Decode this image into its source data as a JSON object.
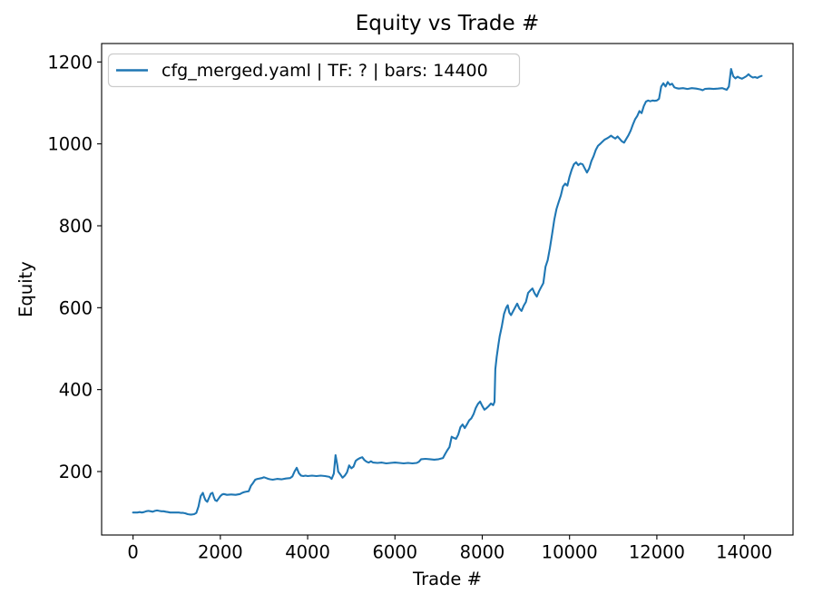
{
  "chart_data": {
    "type": "line",
    "title": "Equity vs Trade #",
    "xlabel": "Trade #",
    "ylabel": "Equity",
    "legend_position": "upper left",
    "line_color": "#1f77b4",
    "legend_edge_color": "#cccccc",
    "xlim": [
      -720,
      15120
    ],
    "ylim": [
      45,
      1245
    ],
    "xticks": [
      0,
      2000,
      4000,
      6000,
      8000,
      10000,
      12000,
      14000
    ],
    "yticks": [
      200,
      400,
      600,
      800,
      1000,
      1200
    ],
    "grid": false,
    "series": [
      {
        "name": "cfg_merged.yaml | TF: ? | bars: 14400",
        "points": [
          [
            0,
            100
          ],
          [
            50,
            100
          ],
          [
            100,
            100
          ],
          [
            150,
            101
          ],
          [
            200,
            100
          ],
          [
            250,
            101
          ],
          [
            300,
            103
          ],
          [
            350,
            104
          ],
          [
            400,
            103
          ],
          [
            450,
            102
          ],
          [
            500,
            104
          ],
          [
            550,
            105
          ],
          [
            600,
            104
          ],
          [
            650,
            103
          ],
          [
            700,
            103
          ],
          [
            750,
            102
          ],
          [
            800,
            101
          ],
          [
            850,
            100
          ],
          [
            900,
            100
          ],
          [
            950,
            100
          ],
          [
            1000,
            100
          ],
          [
            1050,
            100
          ],
          [
            1100,
            99
          ],
          [
            1150,
            99
          ],
          [
            1200,
            98
          ],
          [
            1250,
            96
          ],
          [
            1300,
            95
          ],
          [
            1350,
            95
          ],
          [
            1400,
            96
          ],
          [
            1450,
            99
          ],
          [
            1500,
            115
          ],
          [
            1520,
            126
          ],
          [
            1550,
            140
          ],
          [
            1600,
            148
          ],
          [
            1630,
            138
          ],
          [
            1660,
            130
          ],
          [
            1700,
            126
          ],
          [
            1750,
            138
          ],
          [
            1780,
            146
          ],
          [
            1820,
            148
          ],
          [
            1850,
            138
          ],
          [
            1880,
            130
          ],
          [
            1920,
            128
          ],
          [
            1960,
            134
          ],
          [
            2000,
            140
          ],
          [
            2040,
            144
          ],
          [
            2080,
            145
          ],
          [
            2150,
            143
          ],
          [
            2250,
            144
          ],
          [
            2350,
            143
          ],
          [
            2450,
            145
          ],
          [
            2500,
            148
          ],
          [
            2550,
            150
          ],
          [
            2600,
            151
          ],
          [
            2650,
            152
          ],
          [
            2700,
            165
          ],
          [
            2750,
            172
          ],
          [
            2800,
            180
          ],
          [
            2850,
            182
          ],
          [
            2900,
            183
          ],
          [
            2950,
            184
          ],
          [
            3000,
            186
          ],
          [
            3050,
            184
          ],
          [
            3100,
            182
          ],
          [
            3150,
            181
          ],
          [
            3200,
            180
          ],
          [
            3300,
            182
          ],
          [
            3400,
            181
          ],
          [
            3500,
            183
          ],
          [
            3600,
            184
          ],
          [
            3650,
            188
          ],
          [
            3700,
            200
          ],
          [
            3750,
            209
          ],
          [
            3800,
            196
          ],
          [
            3850,
            190
          ],
          [
            3900,
            189
          ],
          [
            3950,
            190
          ],
          [
            4000,
            189
          ],
          [
            4100,
            190
          ],
          [
            4200,
            189
          ],
          [
            4300,
            190
          ],
          [
            4400,
            189
          ],
          [
            4500,
            187
          ],
          [
            4550,
            182
          ],
          [
            4600,
            195
          ],
          [
            4640,
            240
          ],
          [
            4680,
            215
          ],
          [
            4700,
            200
          ],
          [
            4750,
            193
          ],
          [
            4800,
            185
          ],
          [
            4850,
            190
          ],
          [
            4900,
            198
          ],
          [
            4950,
            215
          ],
          [
            5000,
            208
          ],
          [
            5050,
            212
          ],
          [
            5100,
            226
          ],
          [
            5150,
            230
          ],
          [
            5200,
            233
          ],
          [
            5250,
            235
          ],
          [
            5300,
            228
          ],
          [
            5350,
            224
          ],
          [
            5400,
            222
          ],
          [
            5450,
            225
          ],
          [
            5500,
            222
          ],
          [
            5600,
            221
          ],
          [
            5700,
            222
          ],
          [
            5800,
            220
          ],
          [
            5900,
            221
          ],
          [
            6000,
            222
          ],
          [
            6100,
            221
          ],
          [
            6200,
            220
          ],
          [
            6300,
            221
          ],
          [
            6400,
            220
          ],
          [
            6500,
            221
          ],
          [
            6550,
            224
          ],
          [
            6600,
            230
          ],
          [
            6700,
            231
          ],
          [
            6800,
            230
          ],
          [
            6900,
            229
          ],
          [
            7000,
            230
          ],
          [
            7100,
            233
          ],
          [
            7150,
            243
          ],
          [
            7200,
            252
          ],
          [
            7250,
            260
          ],
          [
            7300,
            285
          ],
          [
            7350,
            282
          ],
          [
            7400,
            280
          ],
          [
            7450,
            290
          ],
          [
            7500,
            308
          ],
          [
            7550,
            315
          ],
          [
            7600,
            306
          ],
          [
            7650,
            315
          ],
          [
            7700,
            325
          ],
          [
            7750,
            330
          ],
          [
            7800,
            340
          ],
          [
            7850,
            355
          ],
          [
            7900,
            365
          ],
          [
            7950,
            371
          ],
          [
            8000,
            360
          ],
          [
            8050,
            351
          ],
          [
            8100,
            355
          ],
          [
            8150,
            360
          ],
          [
            8200,
            366
          ],
          [
            8250,
            362
          ],
          [
            8280,
            370
          ],
          [
            8300,
            450
          ],
          [
            8330,
            480
          ],
          [
            8370,
            510
          ],
          [
            8400,
            530
          ],
          [
            8450,
            555
          ],
          [
            8500,
            585
          ],
          [
            8550,
            600
          ],
          [
            8585,
            606
          ],
          [
            8620,
            588
          ],
          [
            8660,
            582
          ],
          [
            8700,
            590
          ],
          [
            8750,
            600
          ],
          [
            8800,
            610
          ],
          [
            8850,
            598
          ],
          [
            8900,
            592
          ],
          [
            8950,
            605
          ],
          [
            9000,
            614
          ],
          [
            9050,
            636
          ],
          [
            9100,
            642
          ],
          [
            9150,
            647
          ],
          [
            9200,
            635
          ],
          [
            9250,
            627
          ],
          [
            9300,
            640
          ],
          [
            9350,
            650
          ],
          [
            9400,
            660
          ],
          [
            9450,
            700
          ],
          [
            9500,
            716
          ],
          [
            9550,
            745
          ],
          [
            9600,
            780
          ],
          [
            9650,
            815
          ],
          [
            9700,
            841
          ],
          [
            9750,
            858
          ],
          [
            9800,
            874
          ],
          [
            9850,
            896
          ],
          [
            9900,
            903
          ],
          [
            9950,
            898
          ],
          [
            10000,
            920
          ],
          [
            10050,
            937
          ],
          [
            10100,
            950
          ],
          [
            10150,
            955
          ],
          [
            10200,
            948
          ],
          [
            10250,
            952
          ],
          [
            10300,
            950
          ],
          [
            10350,
            940
          ],
          [
            10400,
            930
          ],
          [
            10450,
            940
          ],
          [
            10500,
            958
          ],
          [
            10550,
            970
          ],
          [
            10600,
            985
          ],
          [
            10650,
            995
          ],
          [
            10700,
            1000
          ],
          [
            10750,
            1005
          ],
          [
            10800,
            1010
          ],
          [
            10850,
            1013
          ],
          [
            10900,
            1016
          ],
          [
            10950,
            1020
          ],
          [
            11000,
            1016
          ],
          [
            11050,
            1013
          ],
          [
            11100,
            1018
          ],
          [
            11150,
            1012
          ],
          [
            11200,
            1006
          ],
          [
            11250,
            1003
          ],
          [
            11300,
            1012
          ],
          [
            11350,
            1021
          ],
          [
            11400,
            1032
          ],
          [
            11450,
            1047
          ],
          [
            11500,
            1060
          ],
          [
            11550,
            1068
          ],
          [
            11600,
            1080
          ],
          [
            11650,
            1075
          ],
          [
            11700,
            1092
          ],
          [
            11750,
            1103
          ],
          [
            11800,
            1106
          ],
          [
            11850,
            1104
          ],
          [
            11900,
            1106
          ],
          [
            11950,
            1105
          ],
          [
            12000,
            1106
          ],
          [
            12050,
            1110
          ],
          [
            12100,
            1140
          ],
          [
            12150,
            1148
          ],
          [
            12200,
            1140
          ],
          [
            12250,
            1151
          ],
          [
            12300,
            1144
          ],
          [
            12350,
            1147
          ],
          [
            12400,
            1138
          ],
          [
            12450,
            1136
          ],
          [
            12500,
            1135
          ],
          [
            12600,
            1136
          ],
          [
            12700,
            1134
          ],
          [
            12800,
            1136
          ],
          [
            12900,
            1135
          ],
          [
            13000,
            1133
          ],
          [
            13050,
            1131
          ],
          [
            13100,
            1134
          ],
          [
            13200,
            1135
          ],
          [
            13300,
            1134
          ],
          [
            13400,
            1135
          ],
          [
            13500,
            1136
          ],
          [
            13550,
            1134
          ],
          [
            13600,
            1132
          ],
          [
            13650,
            1140
          ],
          [
            13700,
            1183
          ],
          [
            13750,
            1165
          ],
          [
            13800,
            1160
          ],
          [
            13850,
            1164
          ],
          [
            13900,
            1161
          ],
          [
            13950,
            1159
          ],
          [
            14000,
            1162
          ],
          [
            14050,
            1165
          ],
          [
            14100,
            1170
          ],
          [
            14150,
            1165
          ],
          [
            14200,
            1162
          ],
          [
            14250,
            1163
          ],
          [
            14300,
            1161
          ],
          [
            14350,
            1164
          ],
          [
            14400,
            1166
          ]
        ]
      }
    ]
  }
}
